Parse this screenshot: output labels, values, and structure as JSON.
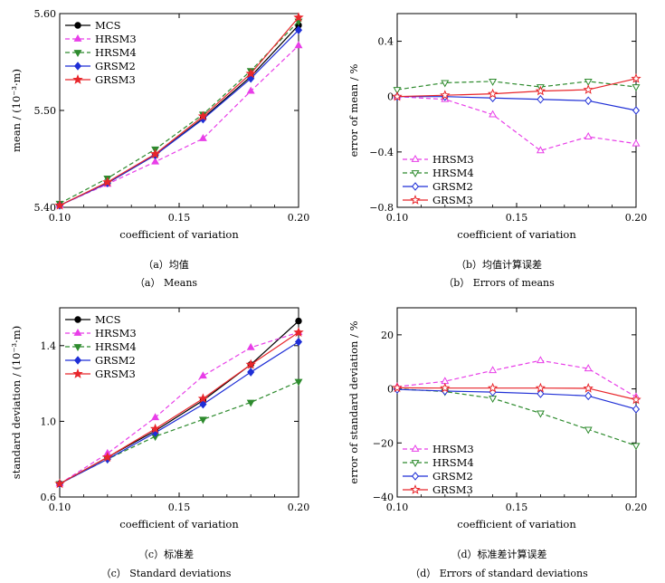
{
  "captions": [
    {
      "cn": "（a）均值",
      "en": "（a） Means"
    },
    {
      "cn": "（b）均值计算误差",
      "en": "（b） Errors of means"
    },
    {
      "cn": "（c）标准差",
      "en": "（c） Standard deviations"
    },
    {
      "cn": "（d）标准差计算误差",
      "en": "（d） Errors of standard deviations"
    }
  ],
  "colors": {
    "MCS": "#000000",
    "HRSM3": "#e83ee8",
    "HRSM4": "#2e8b2e",
    "GRSM2": "#1f2fd6",
    "GRSM3": "#e8262b"
  },
  "chart_data": [
    {
      "type": "line",
      "xlabel": "coefficient of variation",
      "ylabel": "mean / (10⁻³·m)",
      "xlim": [
        0.1,
        0.2
      ],
      "ylim": [
        5.4,
        5.6
      ],
      "xticks": [
        "0.10",
        "0.15",
        "0.20"
      ],
      "yticks": [
        "5.40",
        "5.50",
        "5.60"
      ],
      "legend": "top-left",
      "grid": false,
      "x": [
        0.1,
        0.12,
        0.14,
        0.16,
        0.18,
        0.2
      ],
      "series": [
        {
          "name": "MCS",
          "values": [
            5.402,
            5.425,
            5.454,
            5.492,
            5.535,
            5.588
          ]
        },
        {
          "name": "HRSM3",
          "values": [
            5.402,
            5.424,
            5.447,
            5.471,
            5.52,
            5.567
          ]
        },
        {
          "name": "HRSM4",
          "values": [
            5.404,
            5.43,
            5.46,
            5.496,
            5.541,
            5.592
          ]
        },
        {
          "name": "GRSM2",
          "values": [
            5.402,
            5.425,
            5.454,
            5.491,
            5.533,
            5.583
          ]
        },
        {
          "name": "GRSM3",
          "values": [
            5.402,
            5.426,
            5.455,
            5.494,
            5.538,
            5.596
          ]
        }
      ]
    },
    {
      "type": "line",
      "xlabel": "coefficient of variation",
      "ylabel": "error of mean / %",
      "xlim": [
        0.1,
        0.2
      ],
      "ylim": [
        -0.8,
        0.6
      ],
      "xticks": [
        "0.10",
        "0.15",
        "0.20"
      ],
      "yticks": [
        "−0.8",
        "−0.4",
        "0",
        "0.4"
      ],
      "ytick_values": [
        -0.8,
        -0.4,
        0,
        0.4
      ],
      "legend": "bottom-left",
      "grid": false,
      "x": [
        0.1,
        0.12,
        0.14,
        0.16,
        0.18,
        0.2
      ],
      "series": [
        {
          "name": "HRSM3",
          "values": [
            0.0,
            -0.02,
            -0.13,
            -0.39,
            -0.29,
            -0.34
          ]
        },
        {
          "name": "HRSM4",
          "values": [
            0.05,
            0.1,
            0.11,
            0.07,
            0.11,
            0.07
          ]
        },
        {
          "name": "GRSM2",
          "values": [
            0.0,
            0.0,
            -0.01,
            -0.02,
            -0.03,
            -0.1
          ]
        },
        {
          "name": "GRSM3",
          "values": [
            0.0,
            0.01,
            0.02,
            0.04,
            0.05,
            0.13
          ]
        }
      ]
    },
    {
      "type": "line",
      "xlabel": "coefficient of variation",
      "ylabel": "standard deviation / (10⁻³·m)",
      "xlim": [
        0.1,
        0.2
      ],
      "ylim": [
        0.6,
        1.6
      ],
      "xticks": [
        "0.10",
        "0.15",
        "0.20"
      ],
      "yticks": [
        "0.6",
        "1.0",
        "1.4"
      ],
      "ytick_values": [
        0.6,
        1.0,
        1.4
      ],
      "legend": "top-left",
      "grid": false,
      "x": [
        0.1,
        0.12,
        0.14,
        0.16,
        0.18,
        0.2
      ],
      "series": [
        {
          "name": "MCS",
          "values": [
            0.67,
            0.81,
            0.95,
            1.11,
            1.3,
            1.53
          ]
        },
        {
          "name": "HRSM3",
          "values": [
            0.67,
            0.83,
            1.02,
            1.24,
            1.39,
            1.47
          ]
        },
        {
          "name": "HRSM4",
          "values": [
            0.67,
            0.8,
            0.92,
            1.01,
            1.1,
            1.21
          ]
        },
        {
          "name": "GRSM2",
          "values": [
            0.67,
            0.8,
            0.94,
            1.09,
            1.26,
            1.42
          ]
        },
        {
          "name": "GRSM3",
          "values": [
            0.67,
            0.81,
            0.96,
            1.12,
            1.3,
            1.47
          ]
        }
      ]
    },
    {
      "type": "line",
      "xlabel": "coefficient of variation",
      "ylabel": "error of standard deviation / %",
      "xlim": [
        0.1,
        0.2
      ],
      "ylim": [
        -40,
        30
      ],
      "xticks": [
        "0.10",
        "0.15",
        "0.20"
      ],
      "yticks": [
        "−40",
        "−20",
        "0",
        "20"
      ],
      "ytick_values": [
        -40,
        -20,
        0,
        20
      ],
      "legend": "bottom-left",
      "grid": false,
      "x": [
        0.1,
        0.12,
        0.14,
        0.16,
        0.18,
        0.2
      ],
      "series": [
        {
          "name": "HRSM3",
          "values": [
            0.8,
            2.8,
            6.8,
            10.5,
            7.5,
            -3.0
          ]
        },
        {
          "name": "HRSM4",
          "values": [
            0.0,
            -1.0,
            -3.5,
            -9.0,
            -15.0,
            -21.0
          ]
        },
        {
          "name": "GRSM2",
          "values": [
            -0.2,
            -0.8,
            -1.2,
            -1.8,
            -2.6,
            -7.5
          ]
        },
        {
          "name": "GRSM3",
          "values": [
            0.4,
            0.3,
            0.3,
            0.3,
            0.2,
            -4.0
          ]
        }
      ]
    }
  ]
}
